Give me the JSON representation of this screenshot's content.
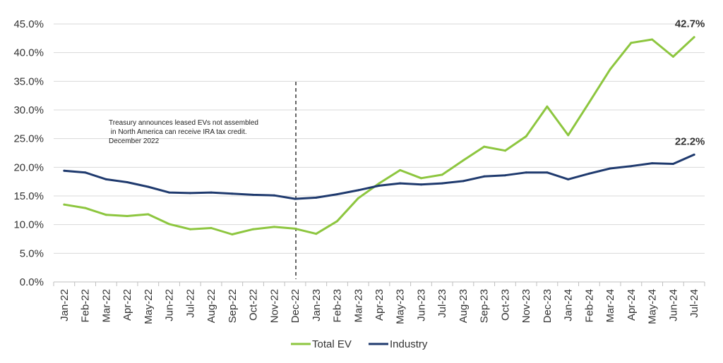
{
  "chart_data": {
    "type": "line",
    "categories": [
      "Jan-22",
      "Feb-22",
      "Mar-22",
      "Apr-22",
      "May-22",
      "Jun-22",
      "Jul-22",
      "Aug-22",
      "Sep-22",
      "Oct-22",
      "Nov-22",
      "Dec-22",
      "Jan-23",
      "Feb-23",
      "Mar-23",
      "Apr-23",
      "May-23",
      "Jun-23",
      "Jul-23",
      "Aug-23",
      "Sep-23",
      "Oct-23",
      "Nov-23",
      "Dec-23",
      "Jan-24",
      "Feb-24",
      "Mar-24",
      "Apr-24",
      "May-24",
      "Jun-24",
      "Jul-24"
    ],
    "series": [
      {
        "name": "Total EV",
        "color": "#8dc63f",
        "values": [
          13.5,
          12.9,
          11.7,
          11.5,
          11.8,
          10.1,
          9.2,
          9.4,
          8.3,
          9.2,
          9.6,
          9.3,
          8.4,
          10.6,
          14.6,
          17.2,
          19.5,
          18.1,
          18.7,
          21.2,
          23.6,
          22.9,
          25.4,
          30.6,
          25.6,
          31.3,
          37.1,
          41.7,
          42.3,
          39.3,
          42.7
        ],
        "end_label": "42.7%"
      },
      {
        "name": "Industry",
        "color": "#1f3a6e",
        "values": [
          19.4,
          19.1,
          17.9,
          17.4,
          16.6,
          15.6,
          15.5,
          15.6,
          15.4,
          15.2,
          15.1,
          14.5,
          14.7,
          15.3,
          16.0,
          16.8,
          17.2,
          17.0,
          17.2,
          17.6,
          18.4,
          18.6,
          19.1,
          19.1,
          17.9,
          18.9,
          19.8,
          20.2,
          20.7,
          20.6,
          22.2
        ],
        "end_label": "22.2%"
      }
    ],
    "y_ticks": [
      "0.0%",
      "5.0%",
      "10.0%",
      "15.0%",
      "20.0%",
      "25.0%",
      "30.0%",
      "35.0%",
      "40.0%",
      "45.0%"
    ],
    "ylim": [
      0,
      45
    ],
    "grid": true,
    "legend_position": "bottom",
    "annotation": {
      "lines": [
        "Treasury announces leased EVs not assembled",
        " in North America can receive IRA tax credit.",
        "December 2022"
      ],
      "marker_category": "Dec-22"
    }
  }
}
